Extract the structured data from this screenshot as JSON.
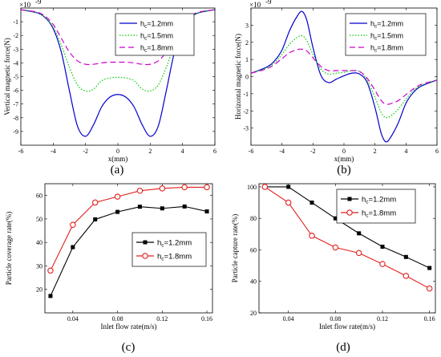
{
  "chart_data": [
    {
      "type": "line",
      "panel_label": "(a)",
      "xlabel": "x(mm)",
      "ylabel": "Vertical magnetic force(N)",
      "exponent_label": "×10",
      "exponent_power": "-9",
      "xlim": [
        -6,
        6
      ],
      "ylim": [
        -10,
        0
      ],
      "xticks": [
        "-6",
        "-4",
        "-2",
        "0",
        "2",
        "4",
        "6"
      ],
      "yticks": [
        "-1",
        "-2",
        "-3",
        "-4",
        "-5",
        "-6",
        "-7",
        "-8",
        "-9"
      ],
      "legend_position": "top-right",
      "series": [
        {
          "name": "hc=1.2mm",
          "legend_base": "h",
          "legend_sub": "c",
          "legend_rest": "=1.2mm",
          "color": "#0000cc",
          "dash": "solid",
          "x": [
            -6,
            -5,
            -4.5,
            -4,
            -3.5,
            -3,
            -2.5,
            -2,
            -1.5,
            -1,
            -0.5,
            0,
            0.5,
            1,
            1.5,
            2,
            2.5,
            3,
            3.5,
            4,
            4.5,
            5,
            6
          ],
          "y": [
            -0.12,
            -0.35,
            -0.7,
            -1.5,
            -3.2,
            -6.0,
            -8.6,
            -9.35,
            -8.5,
            -7.2,
            -6.5,
            -6.3,
            -6.5,
            -7.2,
            -8.5,
            -9.35,
            -8.6,
            -6.0,
            -3.2,
            -1.5,
            -0.7,
            -0.35,
            -0.12
          ]
        },
        {
          "name": "hc=1.5mm",
          "legend_base": "h",
          "legend_sub": "c",
          "legend_rest": "=1.5mm",
          "color": "#00cc00",
          "dash": "dotted",
          "x": [
            -6,
            -5,
            -4.5,
            -4,
            -3.5,
            -3,
            -2.5,
            -2,
            -1.5,
            -1,
            -0.5,
            0,
            0.5,
            1,
            1.5,
            2,
            2.5,
            3,
            3.5,
            4,
            4.5,
            5,
            6
          ],
          "y": [
            -0.12,
            -0.35,
            -0.7,
            -1.4,
            -2.7,
            -4.3,
            -5.6,
            -6.05,
            -5.9,
            -5.3,
            -5.1,
            -5.05,
            -5.1,
            -5.3,
            -5.9,
            -6.05,
            -5.6,
            -4.3,
            -2.7,
            -1.4,
            -0.7,
            -0.35,
            -0.12
          ]
        },
        {
          "name": "hc=1.8mm",
          "legend_base": "h",
          "legend_sub": "c",
          "legend_rest": "=1.8mm",
          "color": "#cc00cc",
          "dash": "dashed",
          "x": [
            -6,
            -5,
            -4.5,
            -4,
            -3.5,
            -3,
            -2.5,
            -2,
            -1.5,
            -1,
            -0.5,
            0,
            0.5,
            1,
            1.5,
            2,
            2.5,
            3,
            3.5,
            4,
            4.5,
            5,
            6
          ],
          "y": [
            -0.12,
            -0.3,
            -0.6,
            -1.2,
            -2.2,
            -3.2,
            -3.85,
            -4.1,
            -4.1,
            -4.0,
            -3.95,
            -3.95,
            -3.95,
            -4.0,
            -4.1,
            -4.1,
            -3.85,
            -3.2,
            -2.2,
            -1.2,
            -0.6,
            -0.3,
            -0.12
          ]
        }
      ]
    },
    {
      "type": "line",
      "panel_label": "(b)",
      "xlabel": "x(mm)",
      "ylabel": "Horizontal magnetic force(N)",
      "exponent_label": "×10",
      "exponent_power": "-9",
      "xlim": [
        -6,
        6
      ],
      "ylim": [
        -4,
        4
      ],
      "xticks": [
        "-6",
        "-4",
        "-2",
        "0",
        "2",
        "4",
        "6"
      ],
      "yticks": [
        "3",
        "2",
        "1",
        "0",
        "-1",
        "-2",
        "-3"
      ],
      "legend_position": "top-right",
      "series": [
        {
          "name": "hc=1.2mm",
          "legend_base": "h",
          "legend_sub": "c",
          "legend_rest": "=1.2mm",
          "color": "#0000cc",
          "dash": "solid",
          "x": [
            -6,
            -5,
            -4.5,
            -4,
            -3.5,
            -3,
            -2.7,
            -2.4,
            -2,
            -1.5,
            -1,
            -0.5,
            0,
            0.5,
            1,
            1.5,
            2,
            2.4,
            2.7,
            3,
            3.5,
            4,
            4.5,
            5,
            6
          ],
          "y": [
            0.2,
            0.55,
            0.9,
            1.55,
            2.7,
            3.55,
            3.8,
            3.3,
            1.7,
            0.1,
            -0.35,
            -0.15,
            0.05,
            0.2,
            0.15,
            -0.35,
            -1.8,
            -3.3,
            -3.8,
            -3.55,
            -2.7,
            -1.55,
            -0.9,
            -0.55,
            -0.2
          ]
        },
        {
          "name": "hc=1.5mm",
          "legend_base": "h",
          "legend_sub": "c",
          "legend_rest": "=1.5mm",
          "color": "#00cc00",
          "dash": "dotted",
          "x": [
            -6,
            -5,
            -4.5,
            -4,
            -3.5,
            -3,
            -2.7,
            -2.4,
            -2,
            -1.5,
            -1,
            -0.5,
            0,
            0.5,
            1,
            1.5,
            2,
            2.4,
            2.7,
            3,
            3.5,
            4,
            4.5,
            5,
            6
          ],
          "y": [
            0.2,
            0.5,
            0.8,
            1.3,
            1.9,
            2.3,
            2.38,
            2.1,
            1.3,
            0.45,
            0.15,
            0.2,
            0.25,
            0.35,
            0.3,
            -0.2,
            -1.2,
            -2.1,
            -2.38,
            -2.3,
            -1.9,
            -1.3,
            -0.8,
            -0.5,
            -0.2
          ]
        },
        {
          "name": "hc=1.8mm",
          "legend_base": "h",
          "legend_sub": "c",
          "legend_rest": "=1.8mm",
          "color": "#cc00cc",
          "dash": "dashed",
          "x": [
            -6,
            -5,
            -4.5,
            -4,
            -3.5,
            -3,
            -2.7,
            -2.4,
            -2,
            -1.5,
            -1,
            -0.5,
            0,
            0.5,
            1,
            1.5,
            2,
            2.4,
            2.7,
            3,
            3.5,
            4,
            4.5,
            5,
            6
          ],
          "y": [
            0.2,
            0.45,
            0.7,
            1.05,
            1.4,
            1.58,
            1.6,
            1.5,
            1.1,
            0.6,
            0.35,
            0.35,
            0.35,
            0.35,
            0.3,
            -0.1,
            -0.8,
            -1.4,
            -1.6,
            -1.58,
            -1.4,
            -1.05,
            -0.7,
            -0.45,
            -0.2
          ]
        }
      ]
    },
    {
      "type": "line",
      "panel_label": "(c)",
      "xlabel": "Inlet flow rate(m/s)",
      "ylabel": "Particle coverage rate(%)",
      "xlim": [
        0.015,
        0.165
      ],
      "ylim": [
        10,
        65
      ],
      "xticks": [
        "0.04",
        "0.08",
        "0.12",
        "0.16"
      ],
      "xtick_values": [
        0.04,
        0.08,
        0.12,
        0.16
      ],
      "yticks": [
        "20",
        "30",
        "40",
        "50",
        "60"
      ],
      "ytick_values": [
        20,
        30,
        40,
        50,
        60
      ],
      "legend_position": "center-right",
      "x": [
        0.02,
        0.04,
        0.06,
        0.08,
        0.1,
        0.12,
        0.14,
        0.16
      ],
      "series": [
        {
          "name": "hc=1.2mm",
          "legend_base": "h",
          "legend_sub": "c",
          "legend_rest": "=1.2mm",
          "color": "#000000",
          "marker": "square",
          "values": [
            17.2,
            38,
            49.8,
            53,
            55.2,
            54.5,
            55.3,
            53.2
          ]
        },
        {
          "name": "hc=1.8mm",
          "legend_base": "h",
          "legend_sub": "c",
          "legend_rest": "=1.8mm",
          "color": "#e0201e",
          "marker": "circle",
          "values": [
            28,
            47.5,
            57,
            59.5,
            62,
            63,
            63.5,
            63.5
          ]
        }
      ]
    },
    {
      "type": "line",
      "panel_label": "(d)",
      "xlabel": "Inlet flow rate(m/s)",
      "ylabel": "Particle capture rate(%)",
      "xlim": [
        0.015,
        0.165
      ],
      "ylim": [
        20,
        102
      ],
      "xticks": [
        "0.04",
        "0.08",
        "0.12",
        "0.16"
      ],
      "xtick_values": [
        0.04,
        0.08,
        0.12,
        0.16
      ],
      "yticks": [
        "20",
        "40",
        "60",
        "80",
        "100"
      ],
      "ytick_values": [
        20,
        40,
        60,
        80,
        100
      ],
      "legend_position": "top-right",
      "x": [
        0.02,
        0.04,
        0.06,
        0.08,
        0.1,
        0.12,
        0.14,
        0.16
      ],
      "series": [
        {
          "name": "hc=1.2mm",
          "legend_base": "h",
          "legend_sub": "c",
          "legend_rest": "=1.2mm",
          "color": "#000000",
          "marker": "square",
          "values": [
            100,
            100,
            90,
            80,
            70.5,
            62,
            55.5,
            48.5
          ]
        },
        {
          "name": "hc=1.8mm",
          "legend_base": "h",
          "legend_sub": "c",
          "legend_rest": "=1.8mm",
          "color": "#e0201e",
          "marker": "circle",
          "values": [
            100,
            90,
            69,
            61.5,
            58,
            51,
            43.5,
            35.5
          ]
        }
      ]
    }
  ]
}
